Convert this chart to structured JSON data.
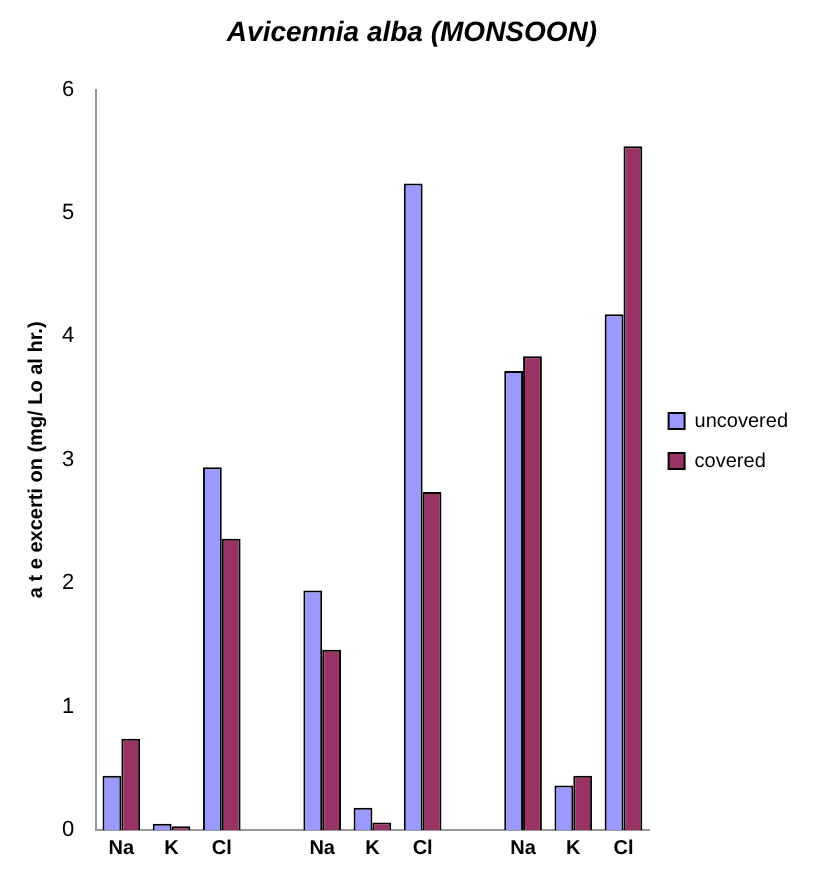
{
  "chart_data": {
    "type": "bar",
    "title": "Avicennia alba (MONSOON)",
    "ylabel": "a t e excerti on (mg/ Lo al hr.)",
    "categories": [
      "Na",
      "K",
      "Cl",
      null,
      "Na",
      "K",
      "Cl",
      null,
      "Na",
      "K",
      "Cl"
    ],
    "series": [
      {
        "name": "uncovered",
        "color": "#9999ff",
        "values": [
          0.44,
          0.05,
          2.94,
          null,
          1.94,
          0.18,
          5.24,
          null,
          3.72,
          0.36,
          4.18
        ]
      },
      {
        "name": "covered",
        "color": "#993366",
        "values": [
          0.74,
          0.03,
          2.36,
          null,
          1.46,
          0.06,
          2.74,
          null,
          3.84,
          0.44,
          5.54
        ]
      }
    ],
    "ylim": [
      0,
      6
    ],
    "yticks": [
      0,
      1,
      2,
      3,
      4,
      5,
      6
    ],
    "grid": false,
    "legend": "right"
  }
}
